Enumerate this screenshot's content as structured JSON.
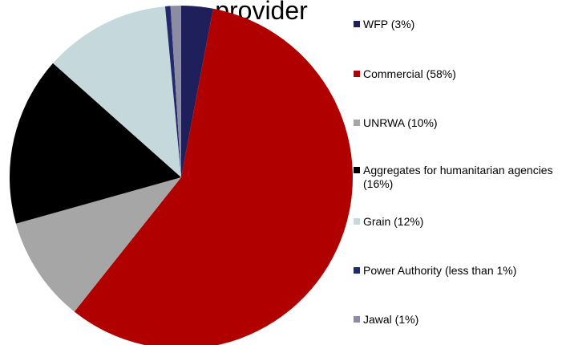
{
  "chart_data": {
    "type": "pie",
    "title": "provider",
    "categories": [
      "WFP (3%)",
      "Commercial (58%)",
      "UNRWA (10%)",
      "Aggregates for humanitarian agencies (16%)",
      "Grain (12%)",
      "Power Authority (less than 1%)",
      "Jawal (1%)"
    ],
    "values": [
      3,
      58,
      10,
      16,
      12,
      0.5,
      1
    ],
    "colors": [
      "#1f1f5c",
      "#b00000",
      "#a6a6a6",
      "#000000",
      "#c5d9dc",
      "#222a6e",
      "#8c8ca3"
    ],
    "legend": "right"
  }
}
